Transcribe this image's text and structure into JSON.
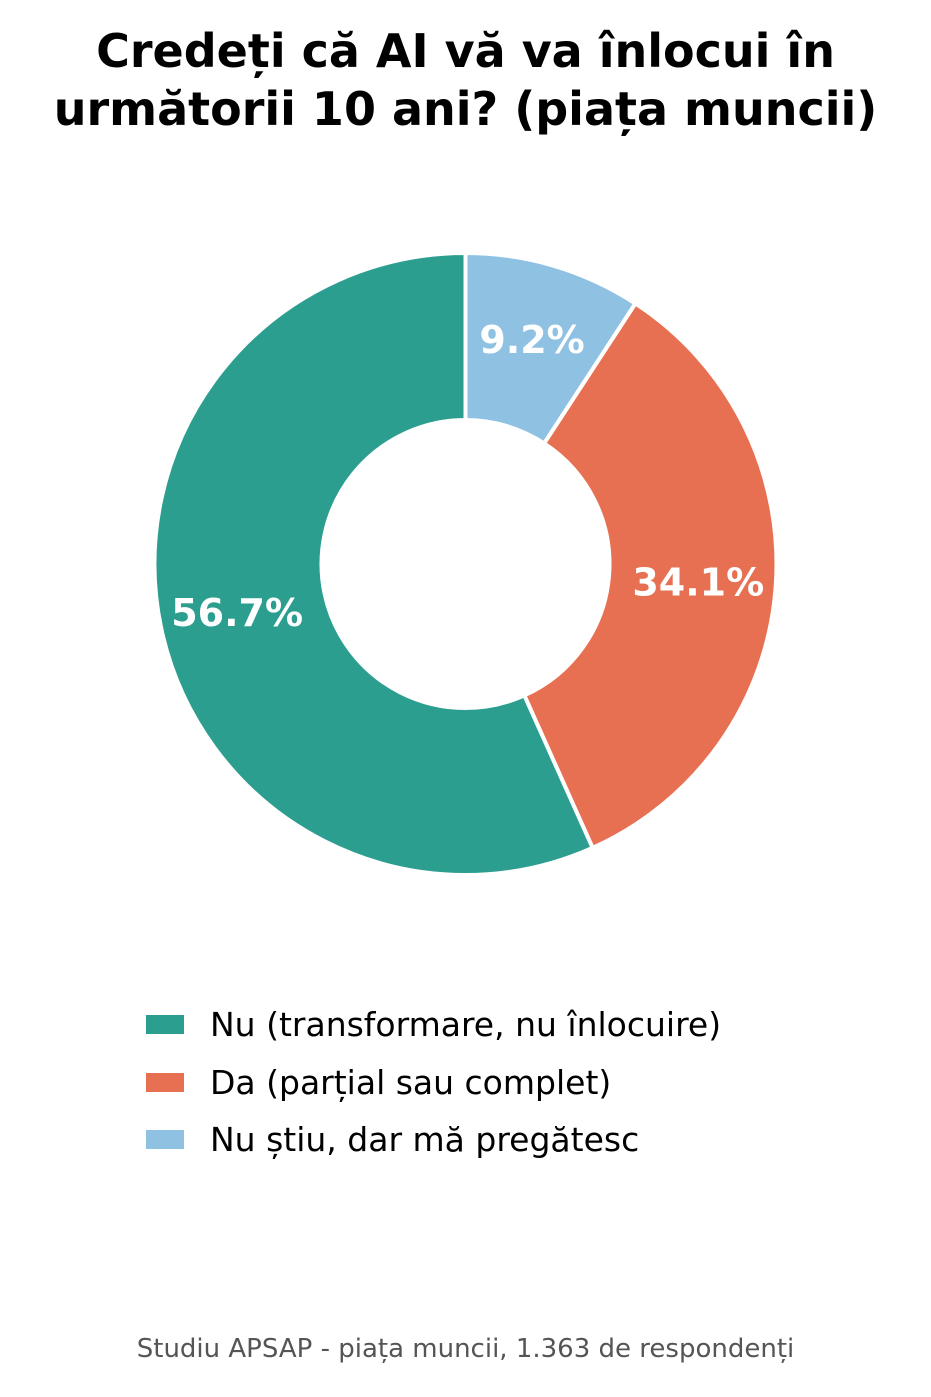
{
  "chart_data": {
    "type": "pie",
    "title_lines": [
      "Credeți că AI vă va înlocui în",
      "următorii 10 ani? (piața muncii)"
    ],
    "hole": "donut",
    "categories": [
      "Nu (transformare, nu înlocuire)",
      "Da (parțial sau complet)",
      "Nu știu, dar mă pregătesc"
    ],
    "values": [
      56.7,
      34.1,
      9.2
    ],
    "labels": [
      "56.7%",
      "34.1%",
      "9.2%"
    ],
    "colors": [
      "#2b9e8f",
      "#e87052",
      "#8fc1e3"
    ],
    "legend_position": "bottom",
    "source": "Studiu APSAP - piața muncii, 1.363 de respondenți"
  }
}
